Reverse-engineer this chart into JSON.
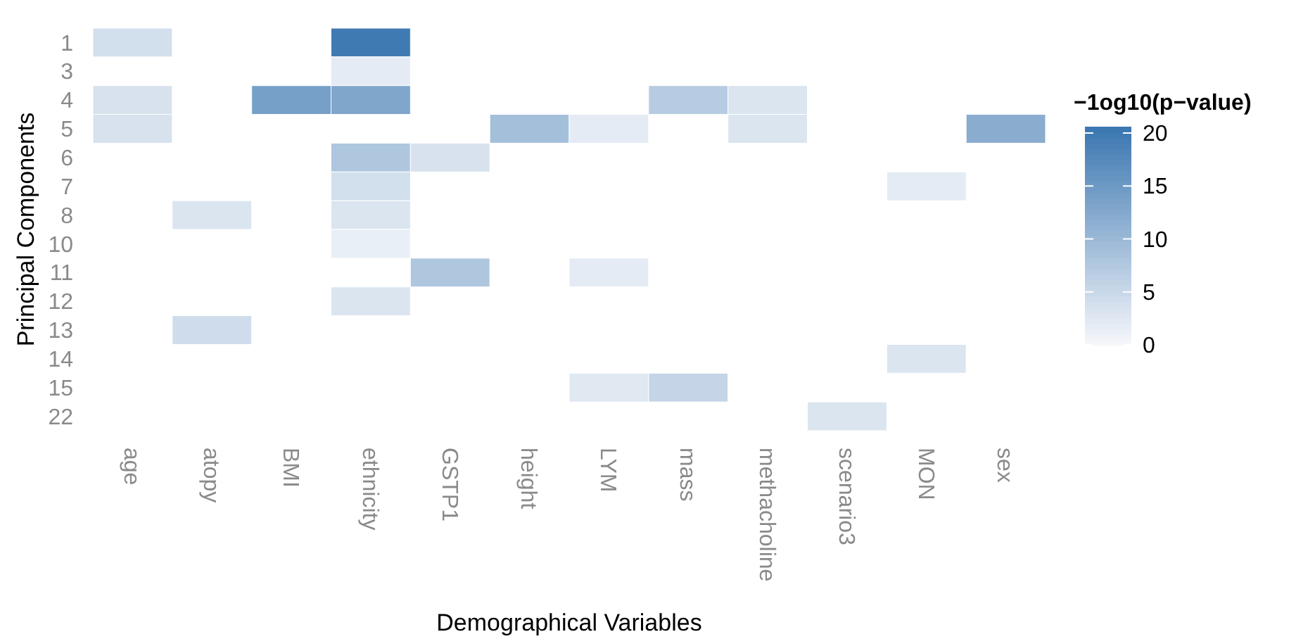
{
  "chart_data": {
    "type": "heatmap",
    "xlabel": "Demographical Variables",
    "ylabel": "Principal Components",
    "clabel": "−1og10(p−value)",
    "categories": [
      "age",
      "atopy",
      "BMI",
      "ethnicity",
      "GSTP1",
      "height",
      "LYM",
      "mass",
      "methacholine",
      "scenario3",
      "MON",
      "sex"
    ],
    "y_categories": [
      "1",
      "3",
      "4",
      "5",
      "6",
      "7",
      "8",
      "10",
      "11",
      "12",
      "13",
      "14",
      "15",
      "22"
    ],
    "cells": [
      [
        4,
        null,
        null,
        20,
        null,
        null,
        null,
        null,
        null,
        null,
        null,
        null
      ],
      [
        null,
        null,
        null,
        2,
        null,
        null,
        null,
        null,
        null,
        null,
        null,
        null
      ],
      [
        3.5,
        null,
        14,
        13,
        null,
        null,
        null,
        7,
        3,
        null,
        null,
        null
      ],
      [
        3.5,
        null,
        null,
        null,
        null,
        9,
        2,
        null,
        3,
        null,
        null,
        12
      ],
      [
        null,
        null,
        null,
        8,
        3.5,
        null,
        null,
        null,
        null,
        null,
        null,
        null
      ],
      [
        null,
        null,
        null,
        4,
        null,
        null,
        null,
        null,
        null,
        null,
        2,
        null
      ],
      [
        null,
        3,
        null,
        3,
        null,
        null,
        null,
        null,
        null,
        null,
        null,
        null
      ],
      [
        null,
        null,
        null,
        1.5,
        null,
        null,
        null,
        null,
        null,
        null,
        null,
        null
      ],
      [
        null,
        null,
        null,
        null,
        8,
        null,
        2,
        null,
        null,
        null,
        null,
        null
      ],
      [
        null,
        null,
        null,
        3,
        null,
        null,
        null,
        null,
        null,
        null,
        null,
        null
      ],
      [
        null,
        4.5,
        null,
        null,
        null,
        null,
        null,
        null,
        null,
        null,
        null,
        null
      ],
      [
        null,
        null,
        null,
        null,
        null,
        null,
        null,
        null,
        null,
        null,
        3,
        null
      ],
      [
        null,
        null,
        null,
        null,
        null,
        null,
        2.5,
        5.5,
        null,
        null,
        null,
        null
      ],
      [
        null,
        null,
        null,
        null,
        null,
        null,
        null,
        null,
        null,
        3,
        null,
        null
      ]
    ],
    "clim": [
      0,
      20.6
    ],
    "cticks": [
      0,
      5,
      10,
      15,
      20
    ]
  }
}
